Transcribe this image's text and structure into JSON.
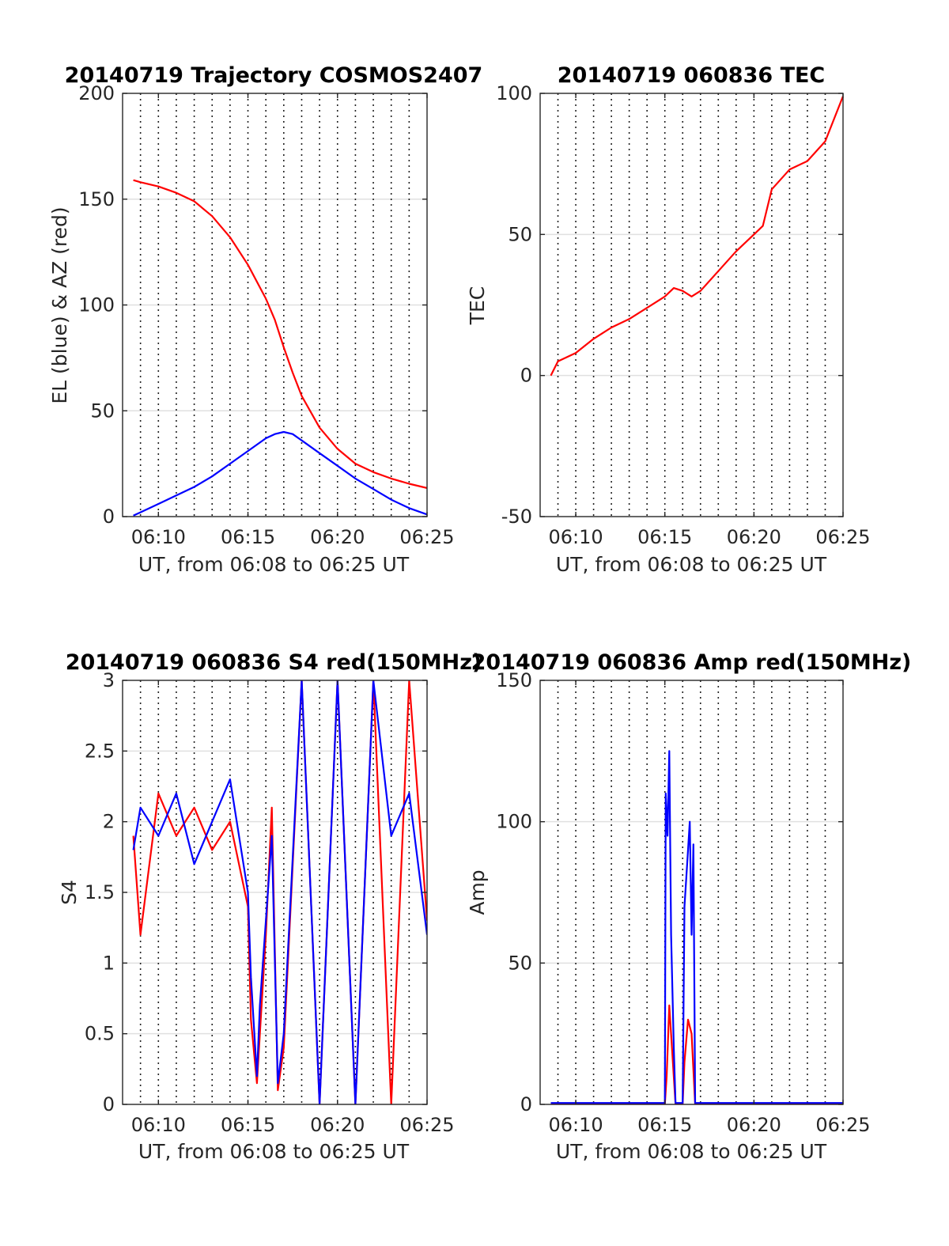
{
  "figure": {
    "background": "#ffffff",
    "colors": {
      "red": "#ff0000",
      "blue": "#0000ff"
    }
  },
  "chart_data": [
    {
      "id": "trajectory",
      "type": "line",
      "title": "20140719 Trajectory COSMOS2407",
      "xlabel": "UT, from 06:08 to 06:25 UT",
      "ylabel": "EL (blue) & AZ (red)",
      "xlim": [
        "06:08",
        "06:25"
      ],
      "x_ticks": [
        "06:10",
        "06:15",
        "06:20",
        "06:25"
      ],
      "ylim": [
        0,
        200
      ],
      "y_ticks": [
        0,
        50,
        100,
        150,
        200
      ],
      "grid": "horizontal solid, vertical dotted every minute",
      "series": [
        {
          "color": "#ff0000",
          "x": [
            "06:08:36",
            "06:09",
            "06:10",
            "06:11",
            "06:12",
            "06:13",
            "06:14",
            "06:15",
            "06:16",
            "06:16:30",
            "06:17",
            "06:17:30",
            "06:18",
            "06:19",
            "06:20",
            "06:21",
            "06:22",
            "06:23",
            "06:24",
            "06:25"
          ],
          "values": [
            159,
            158,
            156,
            153,
            149,
            142,
            132,
            119,
            103,
            93,
            80,
            68,
            57,
            42,
            32,
            25,
            21,
            18,
            15.5,
            13.5
          ]
        },
        {
          "color": "#0000ff",
          "x": [
            "06:08:36",
            "06:09",
            "06:10",
            "06:11",
            "06:12",
            "06:13",
            "06:14",
            "06:15",
            "06:16",
            "06:16:30",
            "06:17",
            "06:17:30",
            "06:18",
            "06:19",
            "06:20",
            "06:21",
            "06:22",
            "06:23",
            "06:24",
            "06:25"
          ],
          "values": [
            0.5,
            2,
            6,
            10,
            14,
            19,
            25,
            31,
            37,
            39,
            40,
            39,
            36,
            30,
            24,
            18,
            13,
            8,
            4,
            1
          ]
        }
      ]
    },
    {
      "id": "tec",
      "type": "line",
      "title": "20140719 060836 TEC",
      "xlabel": "UT, from 06:08 to 06:25 UT",
      "ylabel": "TEC",
      "xlim": [
        "06:08",
        "06:25"
      ],
      "x_ticks": [
        "06:10",
        "06:15",
        "06:20",
        "06:25"
      ],
      "ylim": [
        -50,
        100
      ],
      "y_ticks": [
        -50,
        0,
        50,
        100
      ],
      "grid": "horizontal solid, vertical dotted every minute",
      "series": [
        {
          "color": "#ff0000",
          "x": [
            "06:08:36",
            "06:09",
            "06:10",
            "06:11",
            "06:12",
            "06:13",
            "06:14",
            "06:15",
            "06:15:30",
            "06:16",
            "06:16:30",
            "06:17",
            "06:18",
            "06:19",
            "06:20",
            "06:20:30",
            "06:21",
            "06:22",
            "06:23",
            "06:24",
            "06:25"
          ],
          "values": [
            0,
            5,
            8,
            13,
            17,
            20,
            24,
            28,
            31,
            30,
            28,
            30,
            37,
            44,
            50,
            53,
            66,
            73,
            76,
            83,
            99
          ]
        }
      ]
    },
    {
      "id": "s4",
      "type": "line",
      "title": "20140719 060836 S4 red(150MHz)",
      "xlabel": "UT, from 06:08 to 06:25 UT",
      "ylabel": "S4",
      "xlim": [
        "06:08",
        "06:25"
      ],
      "x_ticks": [
        "06:10",
        "06:15",
        "06:20",
        "06:25"
      ],
      "ylim": [
        0,
        3
      ],
      "y_ticks": [
        0,
        0.5,
        1,
        1.5,
        2,
        2.5,
        3
      ],
      "grid": "horizontal solid, vertical dotted every minute",
      "series": [
        {
          "color": "#ff0000",
          "x": [
            "06:08:36",
            "06:09",
            "06:10",
            "06:11",
            "06:12",
            "06:13",
            "06:14",
            "06:15",
            "06:15:10",
            "06:15:30",
            "06:15:40",
            "06:16",
            "06:16:20",
            "06:16:40",
            "06:17",
            "06:18",
            "06:19",
            "06:20",
            "06:21",
            "06:22",
            "06:23",
            "06:24",
            "06:25"
          ],
          "values": [
            1.9,
            1.2,
            2.2,
            1.9,
            2.1,
            1.8,
            2.0,
            1.4,
            0.6,
            0.15,
            0.5,
            1.2,
            2.1,
            0.1,
            0.4,
            3.0,
            0.0,
            3.0,
            0.0,
            3.0,
            0.0,
            3.0,
            1.3
          ]
        },
        {
          "color": "#0000ff",
          "x": [
            "06:08:36",
            "06:09",
            "06:10",
            "06:11",
            "06:12",
            "06:13",
            "06:14",
            "06:15",
            "06:15:10",
            "06:15:30",
            "06:15:40",
            "06:16",
            "06:16:20",
            "06:16:40",
            "06:17",
            "06:18",
            "06:19",
            "06:20",
            "06:21",
            "06:22",
            "06:23",
            "06:24",
            "06:25"
          ],
          "values": [
            1.8,
            2.1,
            1.9,
            2.2,
            1.7,
            2.0,
            2.3,
            1.5,
            0.9,
            0.2,
            0.7,
            1.3,
            1.9,
            0.15,
            0.5,
            3.0,
            0.0,
            3.0,
            0.0,
            3.0,
            1.9,
            2.2,
            1.2
          ]
        }
      ]
    },
    {
      "id": "amp",
      "type": "line",
      "title": "20140719 060836 Amp red(150MHz)",
      "xlabel": "UT, from 06:08 to 06:25 UT",
      "ylabel": "Amp",
      "xlim": [
        "06:08",
        "06:25"
      ],
      "x_ticks": [
        "06:10",
        "06:15",
        "06:20",
        "06:25"
      ],
      "ylim": [
        0,
        150
      ],
      "y_ticks": [
        0,
        50,
        100,
        150
      ],
      "grid": "horizontal solid, vertical dotted every minute",
      "series": [
        {
          "color": "#ff0000",
          "x": [
            "06:08:36",
            "06:15",
            "06:15:06",
            "06:15:15",
            "06:15:24",
            "06:15:36",
            "06:16",
            "06:16:06",
            "06:16:18",
            "06:16:30",
            "06:16:42",
            "06:17",
            "06:25"
          ],
          "values": [
            0,
            0,
            10,
            35,
            20,
            0,
            0,
            15,
            30,
            25,
            0,
            0,
            0
          ]
        },
        {
          "color": "#0000ff",
          "x": [
            "06:08:36",
            "06:15",
            "06:15:03",
            "06:15:09",
            "06:15:15",
            "06:15:21",
            "06:15:30",
            "06:15:36",
            "06:16",
            "06:16:06",
            "06:16:15",
            "06:16:24",
            "06:16:30",
            "06:16:36",
            "06:16:42",
            "06:17",
            "06:25"
          ],
          "values": [
            0.5,
            0.5,
            110,
            95,
            125,
            60,
            20,
            0.5,
            0.5,
            70,
            85,
            100,
            60,
            92,
            0.5,
            0.5,
            0.5
          ]
        }
      ]
    }
  ]
}
